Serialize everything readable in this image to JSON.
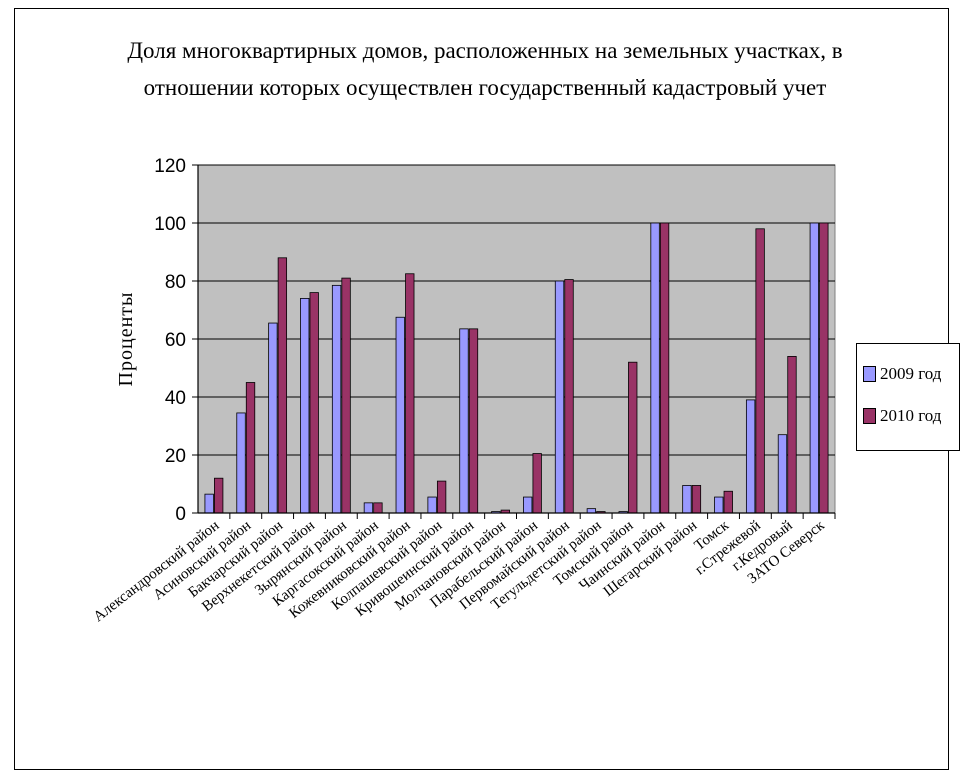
{
  "colors": {
    "series_2009": "#9999FF",
    "series_2010": "#993366",
    "plot_bg": "#C0C0C0"
  },
  "chart_data": {
    "type": "bar",
    "title": "Доля многоквартирных домов, расположенных на земельных участках, в отношении которых осуществлен государственный кадастровый учет",
    "xlabel": "",
    "ylabel": "Проценты",
    "ylim": [
      0,
      120
    ],
    "yticks": [
      "0",
      "20",
      "40",
      "60",
      "80",
      "100",
      "120"
    ],
    "grid": true,
    "legend_position": "right",
    "categories": [
      "Александровский район",
      "Асиновский район",
      "Бакчарский район",
      "Верхнекетский район",
      "Зырянский район",
      "Каргасокский район",
      "Кожевниковский район",
      "Колпашевский район",
      "Кривошеинский район",
      "Молчановский район",
      "Парабельский район",
      "Первомайский район",
      "Тегульдетский район",
      "Томский район",
      "Чаинский район",
      "Шегарский район",
      "Томск",
      "г.Стрежевой",
      "г.Кедровый",
      "ЗАТО Северск"
    ],
    "series": [
      {
        "name": "2009 год",
        "values": [
          6.5,
          34.5,
          65.5,
          74,
          78.5,
          3.5,
          67.5,
          5.5,
          63.5,
          0.5,
          5.5,
          80,
          1.5,
          0.5,
          100,
          9.5,
          5.5,
          39,
          27,
          100
        ]
      },
      {
        "name": "2010 год",
        "values": [
          12,
          45,
          88,
          76,
          81,
          3.5,
          82.5,
          11,
          63.5,
          1,
          20.5,
          80.5,
          0.5,
          52,
          100,
          9.5,
          7.5,
          98,
          54,
          100
        ]
      }
    ]
  }
}
